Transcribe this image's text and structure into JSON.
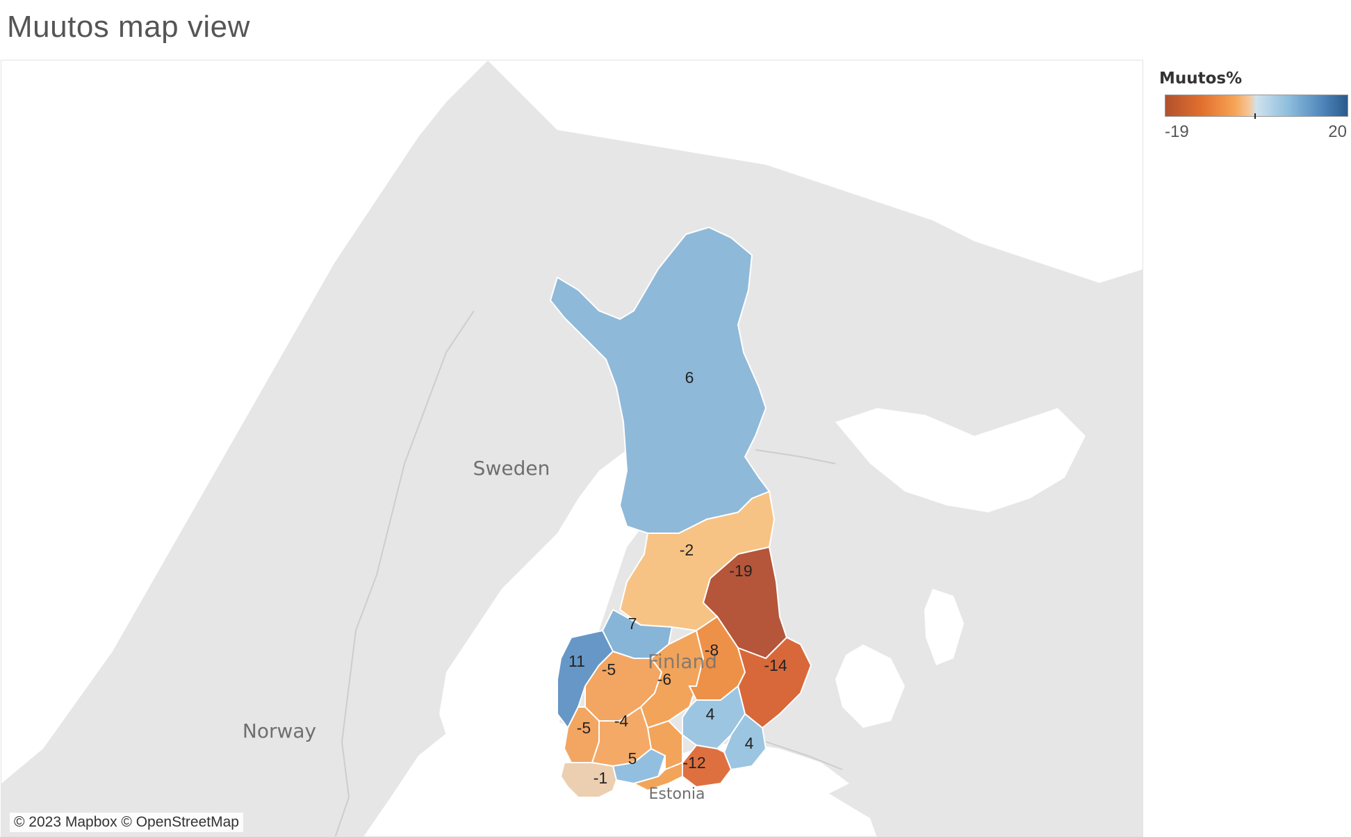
{
  "title": "Muutos map view",
  "map": {
    "countries": [
      "Sweden",
      "Norway",
      "Finland",
      "Estonia"
    ],
    "attribution": "© 2023 Mapbox © OpenStreetMap",
    "colors": {
      "land": "#e6e6e6",
      "water": "#ffffff",
      "border": "#c8c8c8"
    }
  },
  "legend": {
    "title": "Muutos%",
    "min": "-19",
    "max": "20"
  },
  "regions": [
    {
      "name": "lapland",
      "value": "6",
      "color": "#8fb9d9"
    },
    {
      "name": "north-ostrobothnia",
      "value": "-2",
      "color": "#f6c385"
    },
    {
      "name": "kainuu",
      "value": "-19",
      "color": "#b5553a"
    },
    {
      "name": "central-ostrobothnia",
      "value": "7",
      "color": "#86b5d8"
    },
    {
      "name": "ostrobothnia",
      "value": "11",
      "color": "#6697c6"
    },
    {
      "name": "south-ostrobothnia",
      "value": "-5",
      "color": "#f3a562"
    },
    {
      "name": "central-finland",
      "value": "-6",
      "color": "#f2a45b"
    },
    {
      "name": "north-savo",
      "value": "-8",
      "color": "#ee9148"
    },
    {
      "name": "north-karelia",
      "value": "-14",
      "color": "#d8683a"
    },
    {
      "name": "satakunta",
      "value": "-5",
      "color": "#f3a562"
    },
    {
      "name": "pirkanmaa",
      "value": "-4",
      "color": "#f4aa66"
    },
    {
      "name": "south-savo",
      "value": "4",
      "color": "#9cc5e2"
    },
    {
      "name": "south-karelia",
      "value": "4",
      "color": "#9cc5e2"
    },
    {
      "name": "kanta-hame",
      "value": "5",
      "color": "#92bfdf"
    },
    {
      "name": "kymenlaakso",
      "value": "-12",
      "color": "#de7040"
    },
    {
      "name": "southwest-finland",
      "value": "-1",
      "color": "#eccfb0"
    }
  ]
}
